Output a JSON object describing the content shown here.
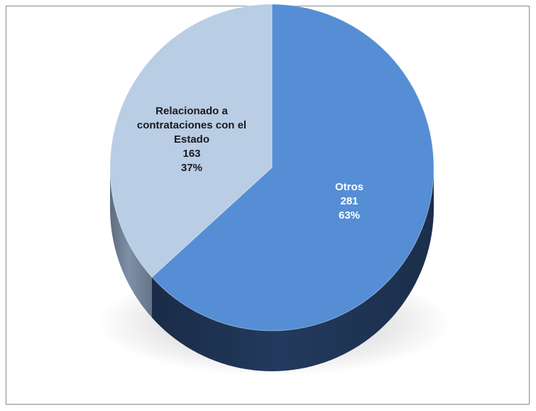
{
  "chart_data": {
    "type": "pie",
    "title": "",
    "slices": [
      {
        "label_lines": [
          "Otros",
          "281",
          "63%"
        ],
        "name": "Otros",
        "value": 281,
        "percent": "63%",
        "color": "#558ed5",
        "side_color": "#223a5e",
        "text_color": "#ffffff"
      },
      {
        "label_lines": [
          "Relacionado a",
          "contrataciones con el",
          "Estado",
          "163",
          "37%"
        ],
        "name": "Relacionado a contrataciones con el Estado",
        "value": 163,
        "percent": "37%",
        "color": "#b9cde5",
        "side_color": "#7e90a8",
        "text_color": "#1a1a1a"
      }
    ],
    "style": "3d-pie",
    "legend": "none",
    "start_angle_deg": 0,
    "direction": "clockwise"
  }
}
